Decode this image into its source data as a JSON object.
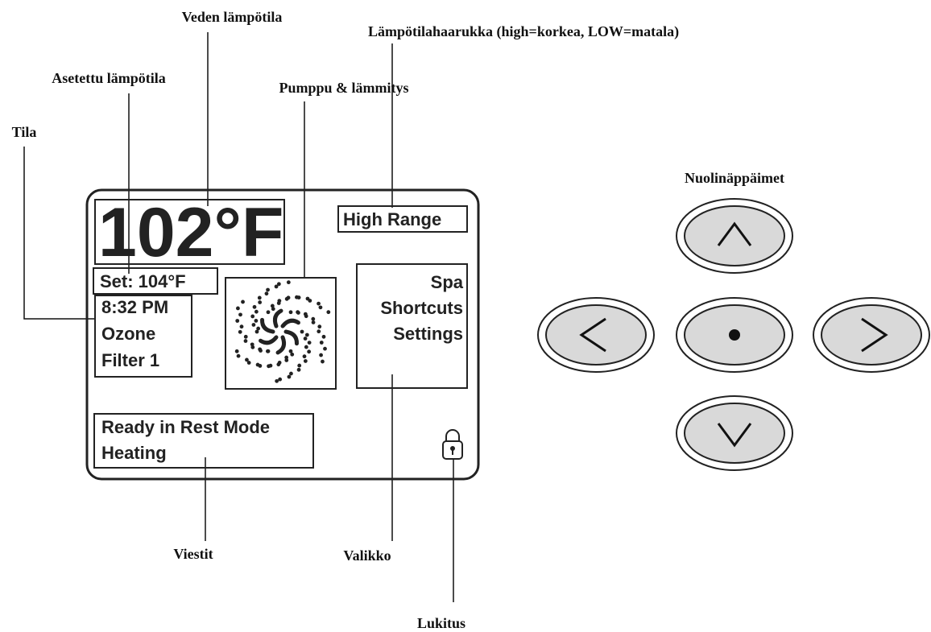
{
  "callouts": {
    "water_temp": "Veden lämpötila",
    "set_temp": "Asetettu lämpötila",
    "mode": "Tila",
    "pump_heat": "Pumppu & lämmitys",
    "range": "Lämpötilahaarukka (high=korkea, LOW=matala)",
    "arrow_keys": "Nuolinäppäimet",
    "messages": "Viestit",
    "menu": "Valikko",
    "lock": "Lukitus"
  },
  "screen": {
    "temperature": "102°F",
    "range": "High Range",
    "set": "Set: 104°F",
    "status": [
      "8:32 PM",
      "Ozone",
      "Filter 1"
    ],
    "menu": [
      "Spa",
      "Shortcuts",
      "Settings"
    ],
    "messages": [
      "Ready in Rest Mode",
      "Heating"
    ]
  }
}
